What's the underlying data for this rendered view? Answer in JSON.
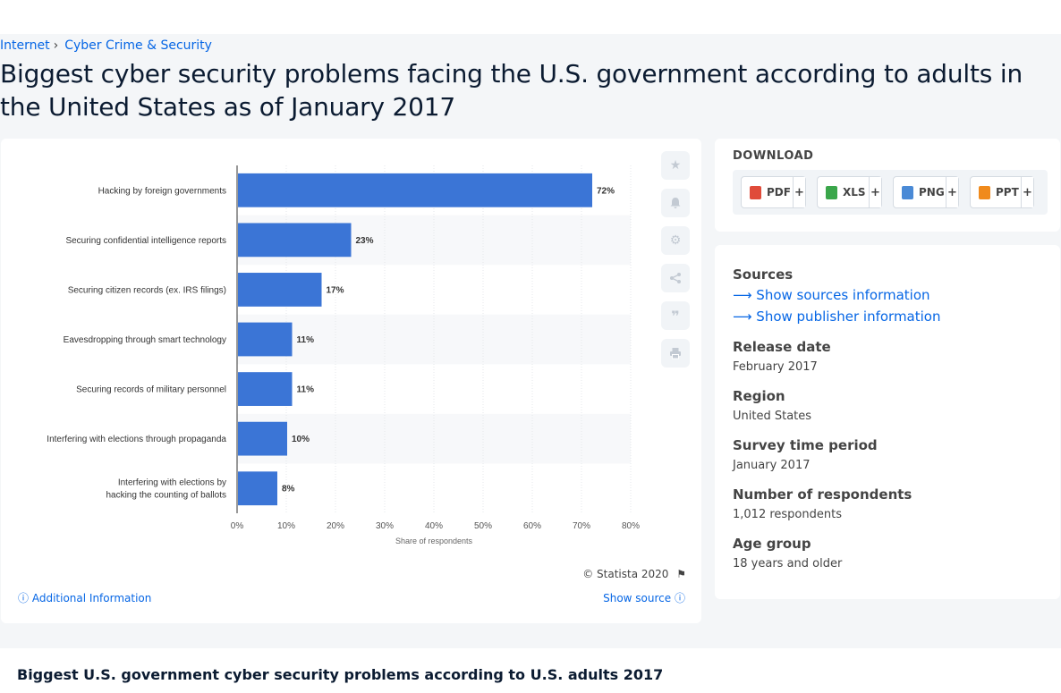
{
  "breadcrumb": {
    "items": [
      "Internet",
      "Cyber Crime & Security"
    ]
  },
  "page": {
    "title": "Biggest cyber security problems facing the U.S. government according to adults in the United States as of January 2017"
  },
  "chart_data": {
    "type": "bar",
    "orientation": "horizontal",
    "categories": [
      "Hacking by foreign governments",
      "Securing confidential intelligence reports",
      "Securing citizen records (ex. IRS filings)",
      "Eavesdropping through smart technology",
      "Securing records of military personnel",
      "Interfering with elections through propaganda",
      "Interfering with elections by hacking the counting of ballots"
    ],
    "values": [
      72,
      23,
      17,
      11,
      11,
      10,
      8
    ],
    "value_labels": [
      "72%",
      "23%",
      "17%",
      "11%",
      "11%",
      "10%",
      "8%"
    ],
    "xlim": [
      0,
      80
    ],
    "x_ticks": [
      "0%",
      "10%",
      "20%",
      "30%",
      "40%",
      "50%",
      "60%",
      "70%",
      "80%"
    ],
    "xlabel": "Share of respondents",
    "bar_color": "#3b75d6",
    "grid": true
  },
  "chart_footer": {
    "credit": "© Statista 2020",
    "additional_info": "Additional Information",
    "show_source": "Show source"
  },
  "download": {
    "title": "DOWNLOAD",
    "buttons": [
      {
        "label": "PDF",
        "icon": "pdf-icon",
        "color": "#e04b3a"
      },
      {
        "label": "XLS",
        "icon": "xls-icon",
        "color": "#3aa64a"
      },
      {
        "label": "PNG",
        "icon": "png-icon",
        "color": "#4a8ad6"
      },
      {
        "label": "PPT",
        "icon": "ppt-icon",
        "color": "#f08a1c"
      }
    ],
    "plus": "+"
  },
  "info": {
    "sources_label": "Sources",
    "show_sources": "Show sources information",
    "show_publisher": "Show publisher information",
    "release_date_label": "Release date",
    "release_date": "February 2017",
    "region_label": "Region",
    "region": "United States",
    "survey_period_label": "Survey time period",
    "survey_period": "January 2017",
    "respondents_label": "Number of respondents",
    "respondents": "1,012 respondents",
    "age_group_label": "Age group",
    "age_group": "18 years and older"
  },
  "bottom": {
    "title": "Biggest U.S. government cyber security problems according to U.S. adults 2017"
  }
}
